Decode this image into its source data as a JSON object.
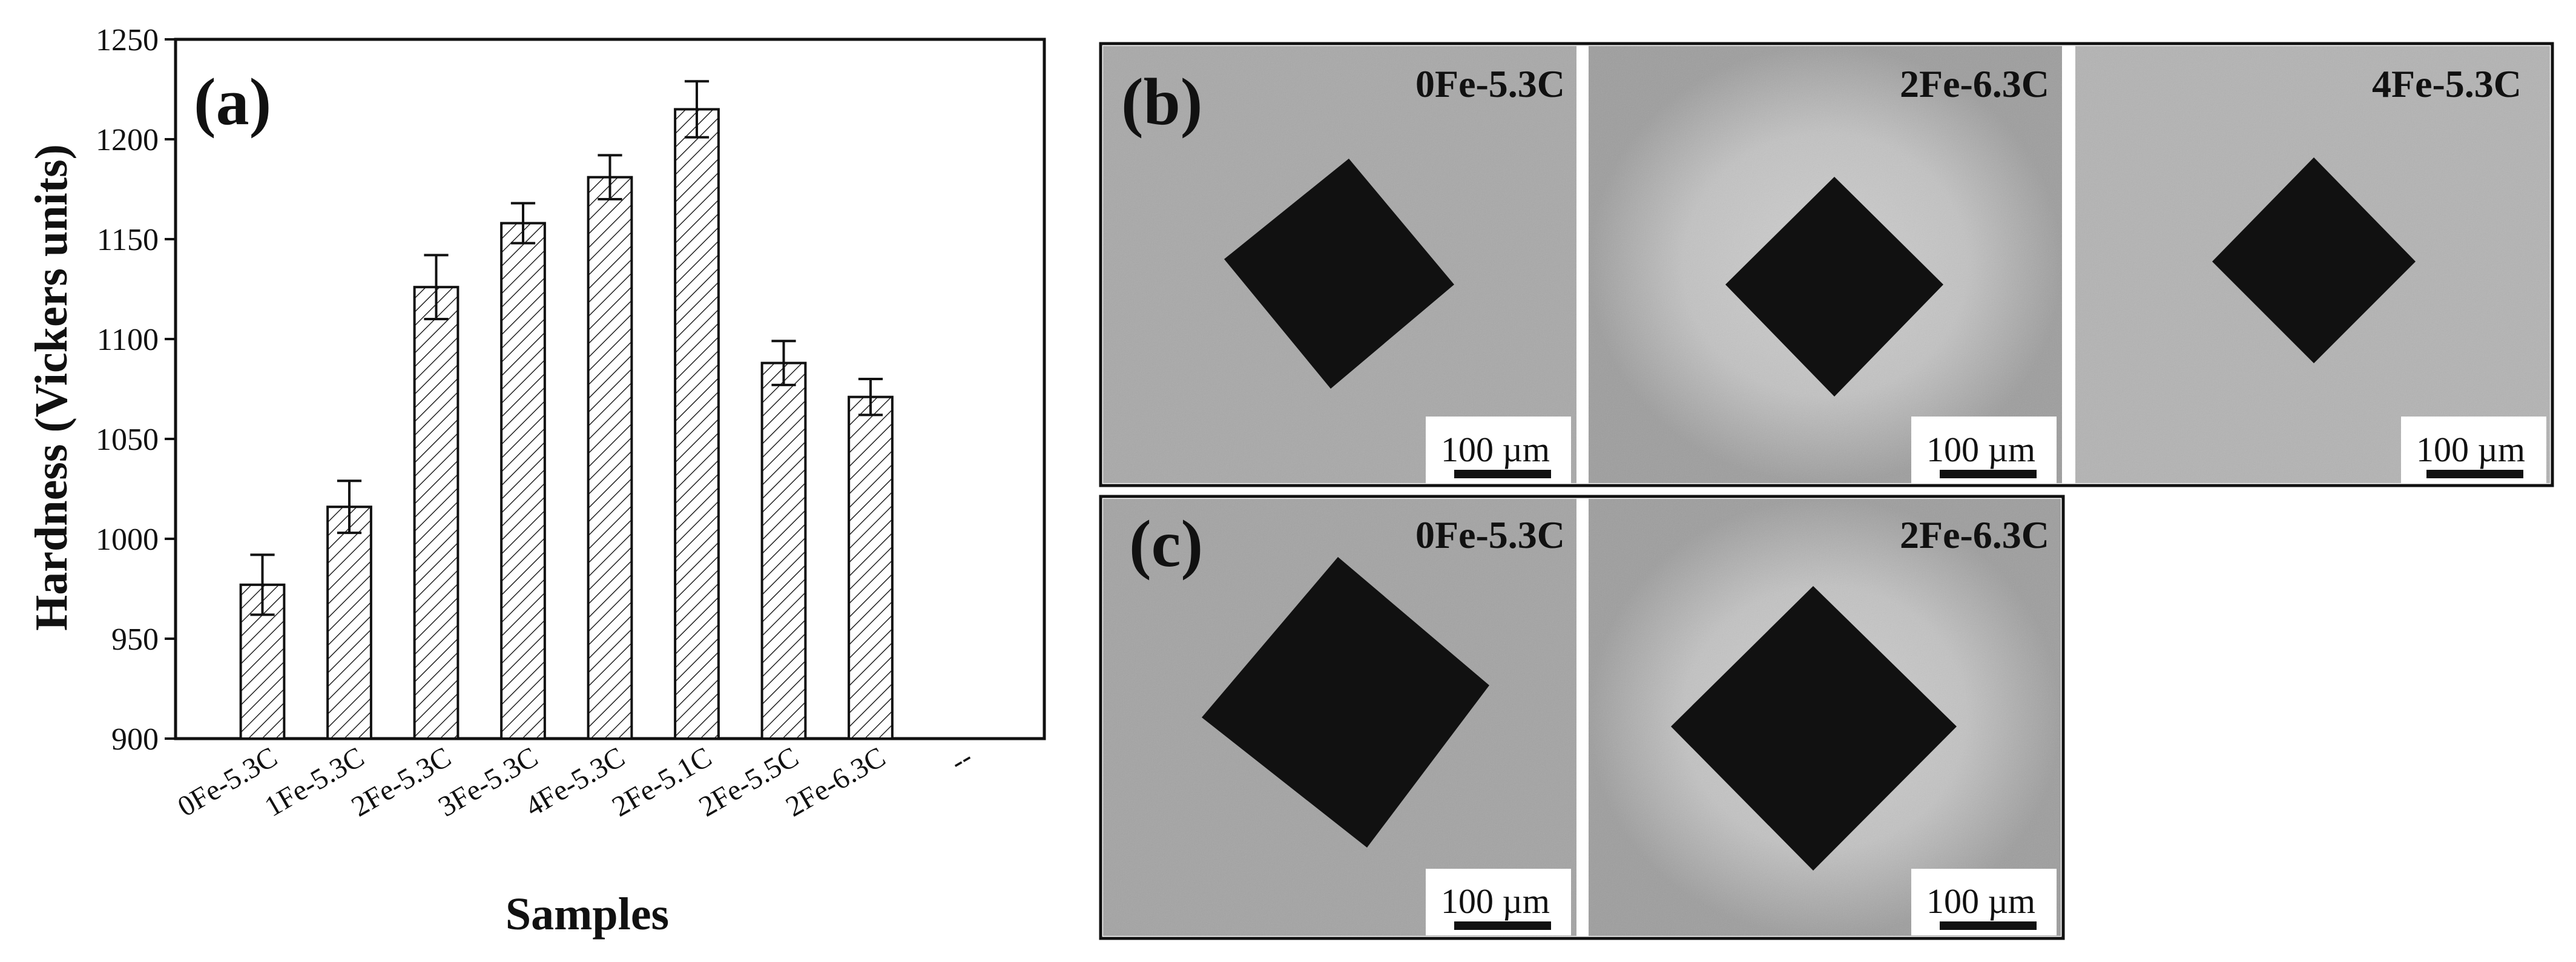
{
  "panel_a": {
    "label": "(a)",
    "chart_data": {
      "type": "bar",
      "xlabel": "Samples",
      "ylabel": "Hardness (Vickers units)",
      "ylim": [
        900,
        1250
      ],
      "yticks": [
        900,
        950,
        1000,
        1050,
        1100,
        1150,
        1200,
        1250
      ],
      "categories": [
        "0Fe-5.3C",
        "1Fe-5.3C",
        "2Fe-5.3C",
        "3Fe-5.3C",
        "4Fe-5.3C",
        "2Fe-5.1C",
        "2Fe-5.5C",
        "2Fe-6.3C",
        "--"
      ],
      "values": [
        977,
        1016,
        1126,
        1158,
        1181,
        1215,
        1088,
        1071,
        null
      ],
      "errors": [
        15,
        13,
        16,
        10,
        11,
        14,
        11,
        9,
        null
      ],
      "fill": "hatched",
      "grid": false
    }
  },
  "panel_b": {
    "label": "(b)",
    "images": [
      {
        "label": "0Fe-5.3C",
        "scale": "100 µm"
      },
      {
        "label": "2Fe-6.3C",
        "scale": "100 µm"
      },
      {
        "label": "4Fe-5.3C",
        "scale": "100 µm"
      }
    ]
  },
  "panel_c": {
    "label": "(c)",
    "images": [
      {
        "label": "0Fe-5.3C",
        "scale": "100 µm"
      },
      {
        "label": "2Fe-6.3C",
        "scale": "100 µm"
      }
    ]
  }
}
